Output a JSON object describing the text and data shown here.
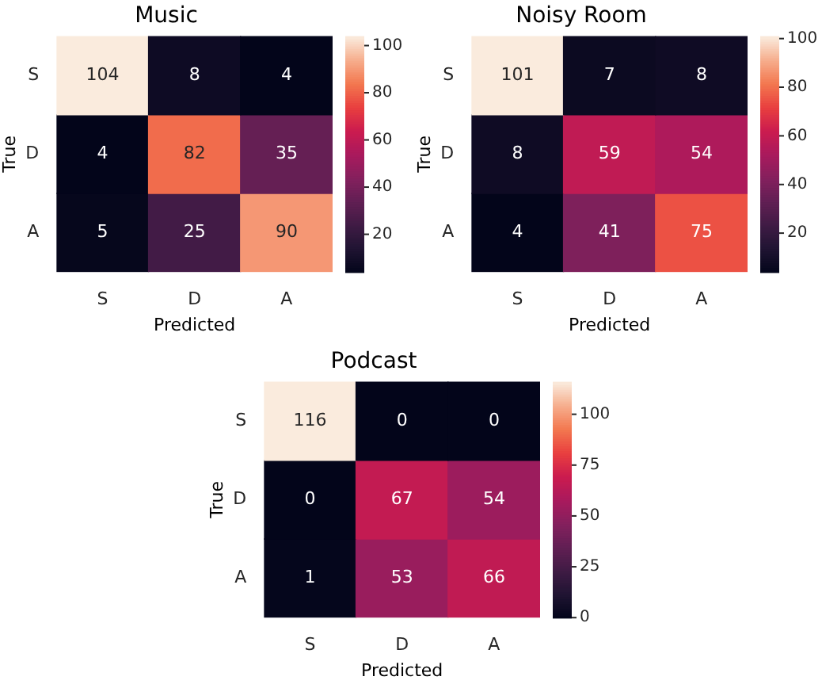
{
  "chart_data": [
    {
      "type": "heatmap",
      "title": "Music",
      "xlabel": "Predicted",
      "ylabel": "True",
      "categories": [
        "S",
        "D",
        "A"
      ],
      "y_categories": [
        "S",
        "D",
        "A"
      ],
      "cells": [
        [
          104,
          8,
          4
        ],
        [
          4,
          82,
          35
        ],
        [
          5,
          25,
          90
        ]
      ],
      "clim": [
        4,
        104
      ],
      "cticks": [
        20,
        40,
        60,
        80,
        100
      ],
      "data_labels": true
    },
    {
      "type": "heatmap",
      "title": "Noisy Room",
      "xlabel": "Predicted",
      "ylabel": "True",
      "categories": [
        "S",
        "D",
        "A"
      ],
      "y_categories": [
        "S",
        "D",
        "A"
      ],
      "cells": [
        [
          101,
          7,
          8
        ],
        [
          8,
          59,
          54
        ],
        [
          4,
          41,
          75
        ]
      ],
      "clim": [
        4,
        101
      ],
      "cticks": [
        20,
        40,
        60,
        80,
        100
      ],
      "data_labels": true
    },
    {
      "type": "heatmap",
      "title": "Podcast",
      "xlabel": "Predicted",
      "ylabel": "True",
      "categories": [
        "S",
        "D",
        "A"
      ],
      "y_categories": [
        "S",
        "D",
        "A"
      ],
      "cells": [
        [
          116,
          0,
          0
        ],
        [
          0,
          67,
          54
        ],
        [
          1,
          53,
          66
        ]
      ],
      "clim": [
        0,
        116
      ],
      "cticks": [
        0,
        25,
        50,
        75,
        100
      ],
      "data_labels": true
    }
  ]
}
